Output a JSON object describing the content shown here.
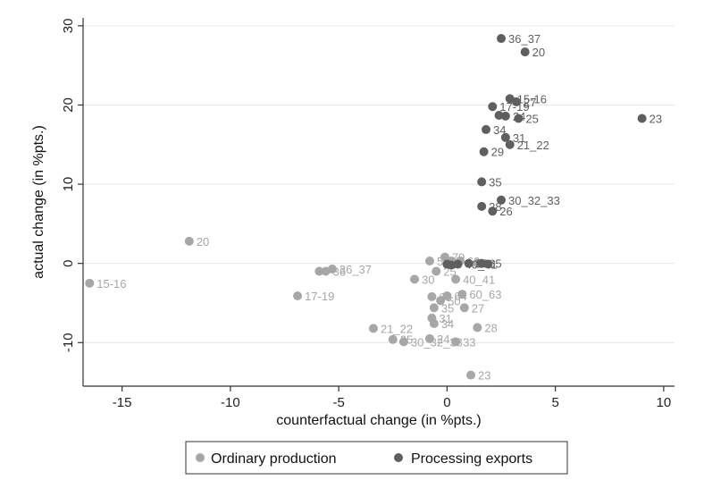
{
  "chart_data": {
    "type": "scatter",
    "xlabel": "counterfactual change (in %pts.)",
    "ylabel": "actual change (in %pts.)",
    "xlim": [
      -16.8,
      10.5
    ],
    "ylim": [
      -15.5,
      31
    ],
    "xticks": [
      -15,
      -10,
      -5,
      0,
      5,
      10
    ],
    "yticks": [
      -10,
      0,
      10,
      20,
      30
    ],
    "grid": true,
    "legend_position": "bottom",
    "series": [
      {
        "name": "Ordinary production",
        "color": "#a7a7a7",
        "points": [
          {
            "x": -16.5,
            "y": -2.5,
            "label": "15-16"
          },
          {
            "x": -11.9,
            "y": 2.8,
            "label": "20"
          },
          {
            "x": -6.9,
            "y": -4.1,
            "label": "17-19"
          },
          {
            "x": -5.9,
            "y": -1.0,
            "label": ""
          },
          {
            "x": -5.6,
            "y": -1.0,
            "label": "36"
          },
          {
            "x": -5.3,
            "y": -0.7,
            "label": "36_37"
          },
          {
            "x": -3.4,
            "y": -8.2,
            "label": "21_22"
          },
          {
            "x": -2.5,
            "y": -9.6,
            "label": "25"
          },
          {
            "x": -2.0,
            "y": -9.9,
            "label": "30_32_33"
          },
          {
            "x": -1.5,
            "y": -2.0,
            "label": "30"
          },
          {
            "x": -0.8,
            "y": 0.3,
            "label": "5"
          },
          {
            "x": -0.5,
            "y": -1.0,
            "label": "25"
          },
          {
            "x": -0.1,
            "y": 0.8,
            "label": "79"
          },
          {
            "x": 0.2,
            "y": 0.3,
            "label": ""
          },
          {
            "x": 0.6,
            "y": 0.3,
            "label": "62"
          },
          {
            "x": 1.4,
            "y": 0.0,
            "label": ""
          },
          {
            "x": 0.4,
            "y": -2.0,
            "label": "40_41"
          },
          {
            "x": -0.7,
            "y": -4.2,
            "label": "65"
          },
          {
            "x": -0.3,
            "y": -4.7,
            "label": "50"
          },
          {
            "x": 0.0,
            "y": -4.1,
            "label": "64"
          },
          {
            "x": 0.7,
            "y": -3.9,
            "label": "60_63"
          },
          {
            "x": -0.6,
            "y": -5.6,
            "label": "35"
          },
          {
            "x": 0.8,
            "y": -5.6,
            "label": "27"
          },
          {
            "x": -0.7,
            "y": -6.9,
            "label": "31"
          },
          {
            "x": -0.6,
            "y": -7.6,
            "label": "34"
          },
          {
            "x": 1.4,
            "y": -8.1,
            "label": "28"
          },
          {
            "x": -0.8,
            "y": -9.5,
            "label": "24"
          },
          {
            "x": 0.4,
            "y": -9.9,
            "label": "33"
          },
          {
            "x": 1.1,
            "y": -14.1,
            "label": "23"
          }
        ]
      },
      {
        "name": "Processing exports",
        "color": "#5f5f5f",
        "points": [
          {
            "x": 2.5,
            "y": 28.4,
            "label": "36_37"
          },
          {
            "x": 3.6,
            "y": 26.7,
            "label": "20"
          },
          {
            "x": 2.9,
            "y": 20.8,
            "label": "15-16"
          },
          {
            "x": 3.2,
            "y": 20.4,
            "label": "27"
          },
          {
            "x": 2.1,
            "y": 19.8,
            "label": "17-19"
          },
          {
            "x": 2.4,
            "y": 18.7,
            "label": ""
          },
          {
            "x": 2.7,
            "y": 18.6,
            "label": "24"
          },
          {
            "x": 3.3,
            "y": 18.3,
            "label": "25"
          },
          {
            "x": 9.0,
            "y": 18.3,
            "label": "23"
          },
          {
            "x": 1.8,
            "y": 16.9,
            "label": "34"
          },
          {
            "x": 2.7,
            "y": 15.9,
            "label": "31"
          },
          {
            "x": 2.9,
            "y": 15.0,
            "label": "21_22"
          },
          {
            "x": 1.7,
            "y": 14.1,
            "label": "29"
          },
          {
            "x": 1.6,
            "y": 10.3,
            "label": "35"
          },
          {
            "x": 2.5,
            "y": 8.0,
            "label": "30_32_33"
          },
          {
            "x": 1.6,
            "y": 7.2,
            "label": "28"
          },
          {
            "x": 2.1,
            "y": 6.6,
            "label": "26"
          },
          {
            "x": 0.5,
            "y": -0.1,
            "label": "40_41"
          },
          {
            "x": 1.0,
            "y": 0.0,
            "label": "50"
          },
          {
            "x": 1.6,
            "y": 0.0,
            "label": "65"
          },
          {
            "x": 1.9,
            "y": -0.1,
            "label": ""
          },
          {
            "x": 0.0,
            "y": -0.1,
            "label": ""
          },
          {
            "x": 0.2,
            "y": -0.2,
            "label": ""
          }
        ]
      }
    ]
  }
}
